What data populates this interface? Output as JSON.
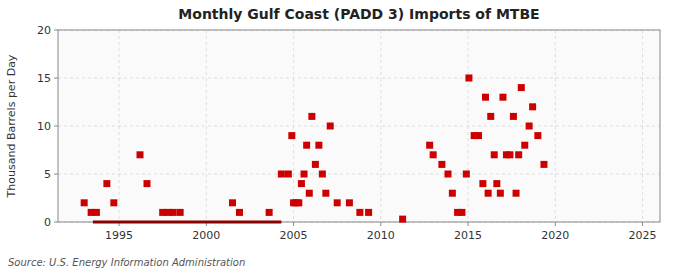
{
  "chart_data": {
    "type": "scatter",
    "title": "Monthly Gulf Coast (PADD 3) Imports of MTBE",
    "ylabel": "Thousand Barrels per Day",
    "annotation": "Source: U.S. Energy Information Administration",
    "xlim": [
      1991.5,
      2026
    ],
    "ylim": [
      0,
      20
    ],
    "xticks": [
      1995,
      2000,
      2005,
      2010,
      2015,
      2020,
      2025
    ],
    "yticks": [
      0,
      5,
      10,
      15,
      20
    ],
    "grid": true,
    "series": [
      {
        "type": "line",
        "color": "#8b0000",
        "x": [
          1993.5,
          2004.3
        ],
        "values": [
          0,
          0
        ]
      },
      {
        "type": "scatter",
        "color": "#cc0000",
        "marker": "square",
        "x": [
          1993.0,
          1993.4,
          1993.7,
          1994.3,
          1994.7,
          1996.2,
          1996.6,
          1997.5,
          1997.8,
          1998.1,
          1998.5,
          2001.5,
          2001.9,
          2003.6,
          2004.3,
          2004.7,
          2004.9,
          2005.0,
          2005.15,
          2005.3,
          2005.45,
          2005.6,
          2005.75,
          2005.9,
          2006.05,
          2006.25,
          2006.45,
          2006.65,
          2006.85,
          2007.1,
          2007.5,
          2008.2,
          2008.8,
          2009.3,
          2011.25,
          2012.8,
          2013.0,
          2013.5,
          2013.85,
          2014.1,
          2014.4,
          2014.65,
          2014.9,
          2015.05,
          2015.35,
          2015.6,
          2015.85,
          2016.0,
          2016.15,
          2016.3,
          2016.5,
          2016.65,
          2016.85,
          2017.0,
          2017.2,
          2017.4,
          2017.6,
          2017.75,
          2017.9,
          2018.05,
          2018.25,
          2018.5,
          2018.7,
          2019.0,
          2019.35
        ],
        "values": [
          2,
          1,
          1,
          4,
          2,
          7,
          4,
          1,
          1,
          1,
          1,
          2,
          1,
          1,
          5,
          5,
          9,
          2,
          2,
          2,
          4,
          5,
          8,
          3,
          11,
          6,
          8,
          5,
          3,
          10,
          2,
          2,
          1,
          1,
          0.3,
          8,
          7,
          6,
          5,
          3,
          1,
          1,
          5,
          15,
          9,
          9,
          4,
          13,
          3,
          11,
          7,
          4,
          3,
          13,
          7,
          7,
          11,
          3,
          7,
          14,
          8,
          10,
          12,
          9,
          6
        ]
      }
    ]
  }
}
